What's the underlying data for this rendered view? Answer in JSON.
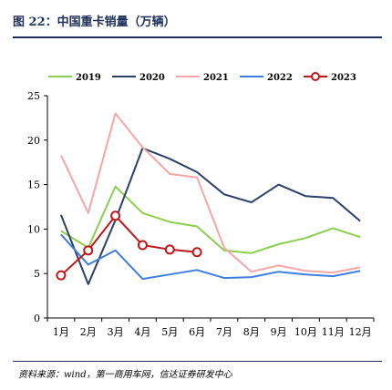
{
  "header": {
    "title": "图 22：中国重卡销量（万辆）"
  },
  "footer": {
    "source": "资料来源：wind，第一商用车网，信达证券研发中心"
  },
  "chart_data": {
    "type": "line",
    "categories": [
      "1月",
      "2月",
      "3月",
      "4月",
      "5月",
      "6月",
      "7月",
      "8月",
      "9月",
      "10月",
      "11月",
      "12月"
    ],
    "ylim": [
      0,
      25
    ],
    "yticks": [
      0,
      5,
      10,
      15,
      20,
      25
    ],
    "grid": false,
    "legend_position": "top",
    "series": [
      {
        "name": "2019",
        "color": "#8ccf4d",
        "marker": false,
        "values": [
          9.8,
          7.9,
          14.8,
          11.8,
          10.8,
          10.3,
          7.6,
          7.3,
          8.3,
          9.0,
          10.1,
          9.1
        ]
      },
      {
        "name": "2020",
        "color": "#2b3f6b",
        "marker": false,
        "values": [
          11.6,
          3.8,
          11.0,
          19.1,
          17.9,
          16.4,
          13.9,
          13.0,
          15.0,
          13.7,
          13.5,
          10.9
        ]
      },
      {
        "name": "2021",
        "color": "#f5a7a7",
        "marker": false,
        "values": [
          18.3,
          11.8,
          23.0,
          19.2,
          16.2,
          15.8,
          7.9,
          5.2,
          5.9,
          5.3,
          5.1,
          5.7
        ]
      },
      {
        "name": "2022",
        "color": "#3d7fe0",
        "marker": false,
        "values": [
          9.4,
          6.0,
          7.6,
          4.4,
          4.9,
          5.4,
          4.5,
          4.6,
          5.2,
          4.9,
          4.7,
          5.3
        ]
      },
      {
        "name": "2023",
        "color": "#c0171c",
        "marker": true,
        "values": [
          4.8,
          7.6,
          11.5,
          8.2,
          7.7,
          7.4,
          null,
          null,
          null,
          null,
          null,
          null
        ]
      }
    ]
  }
}
